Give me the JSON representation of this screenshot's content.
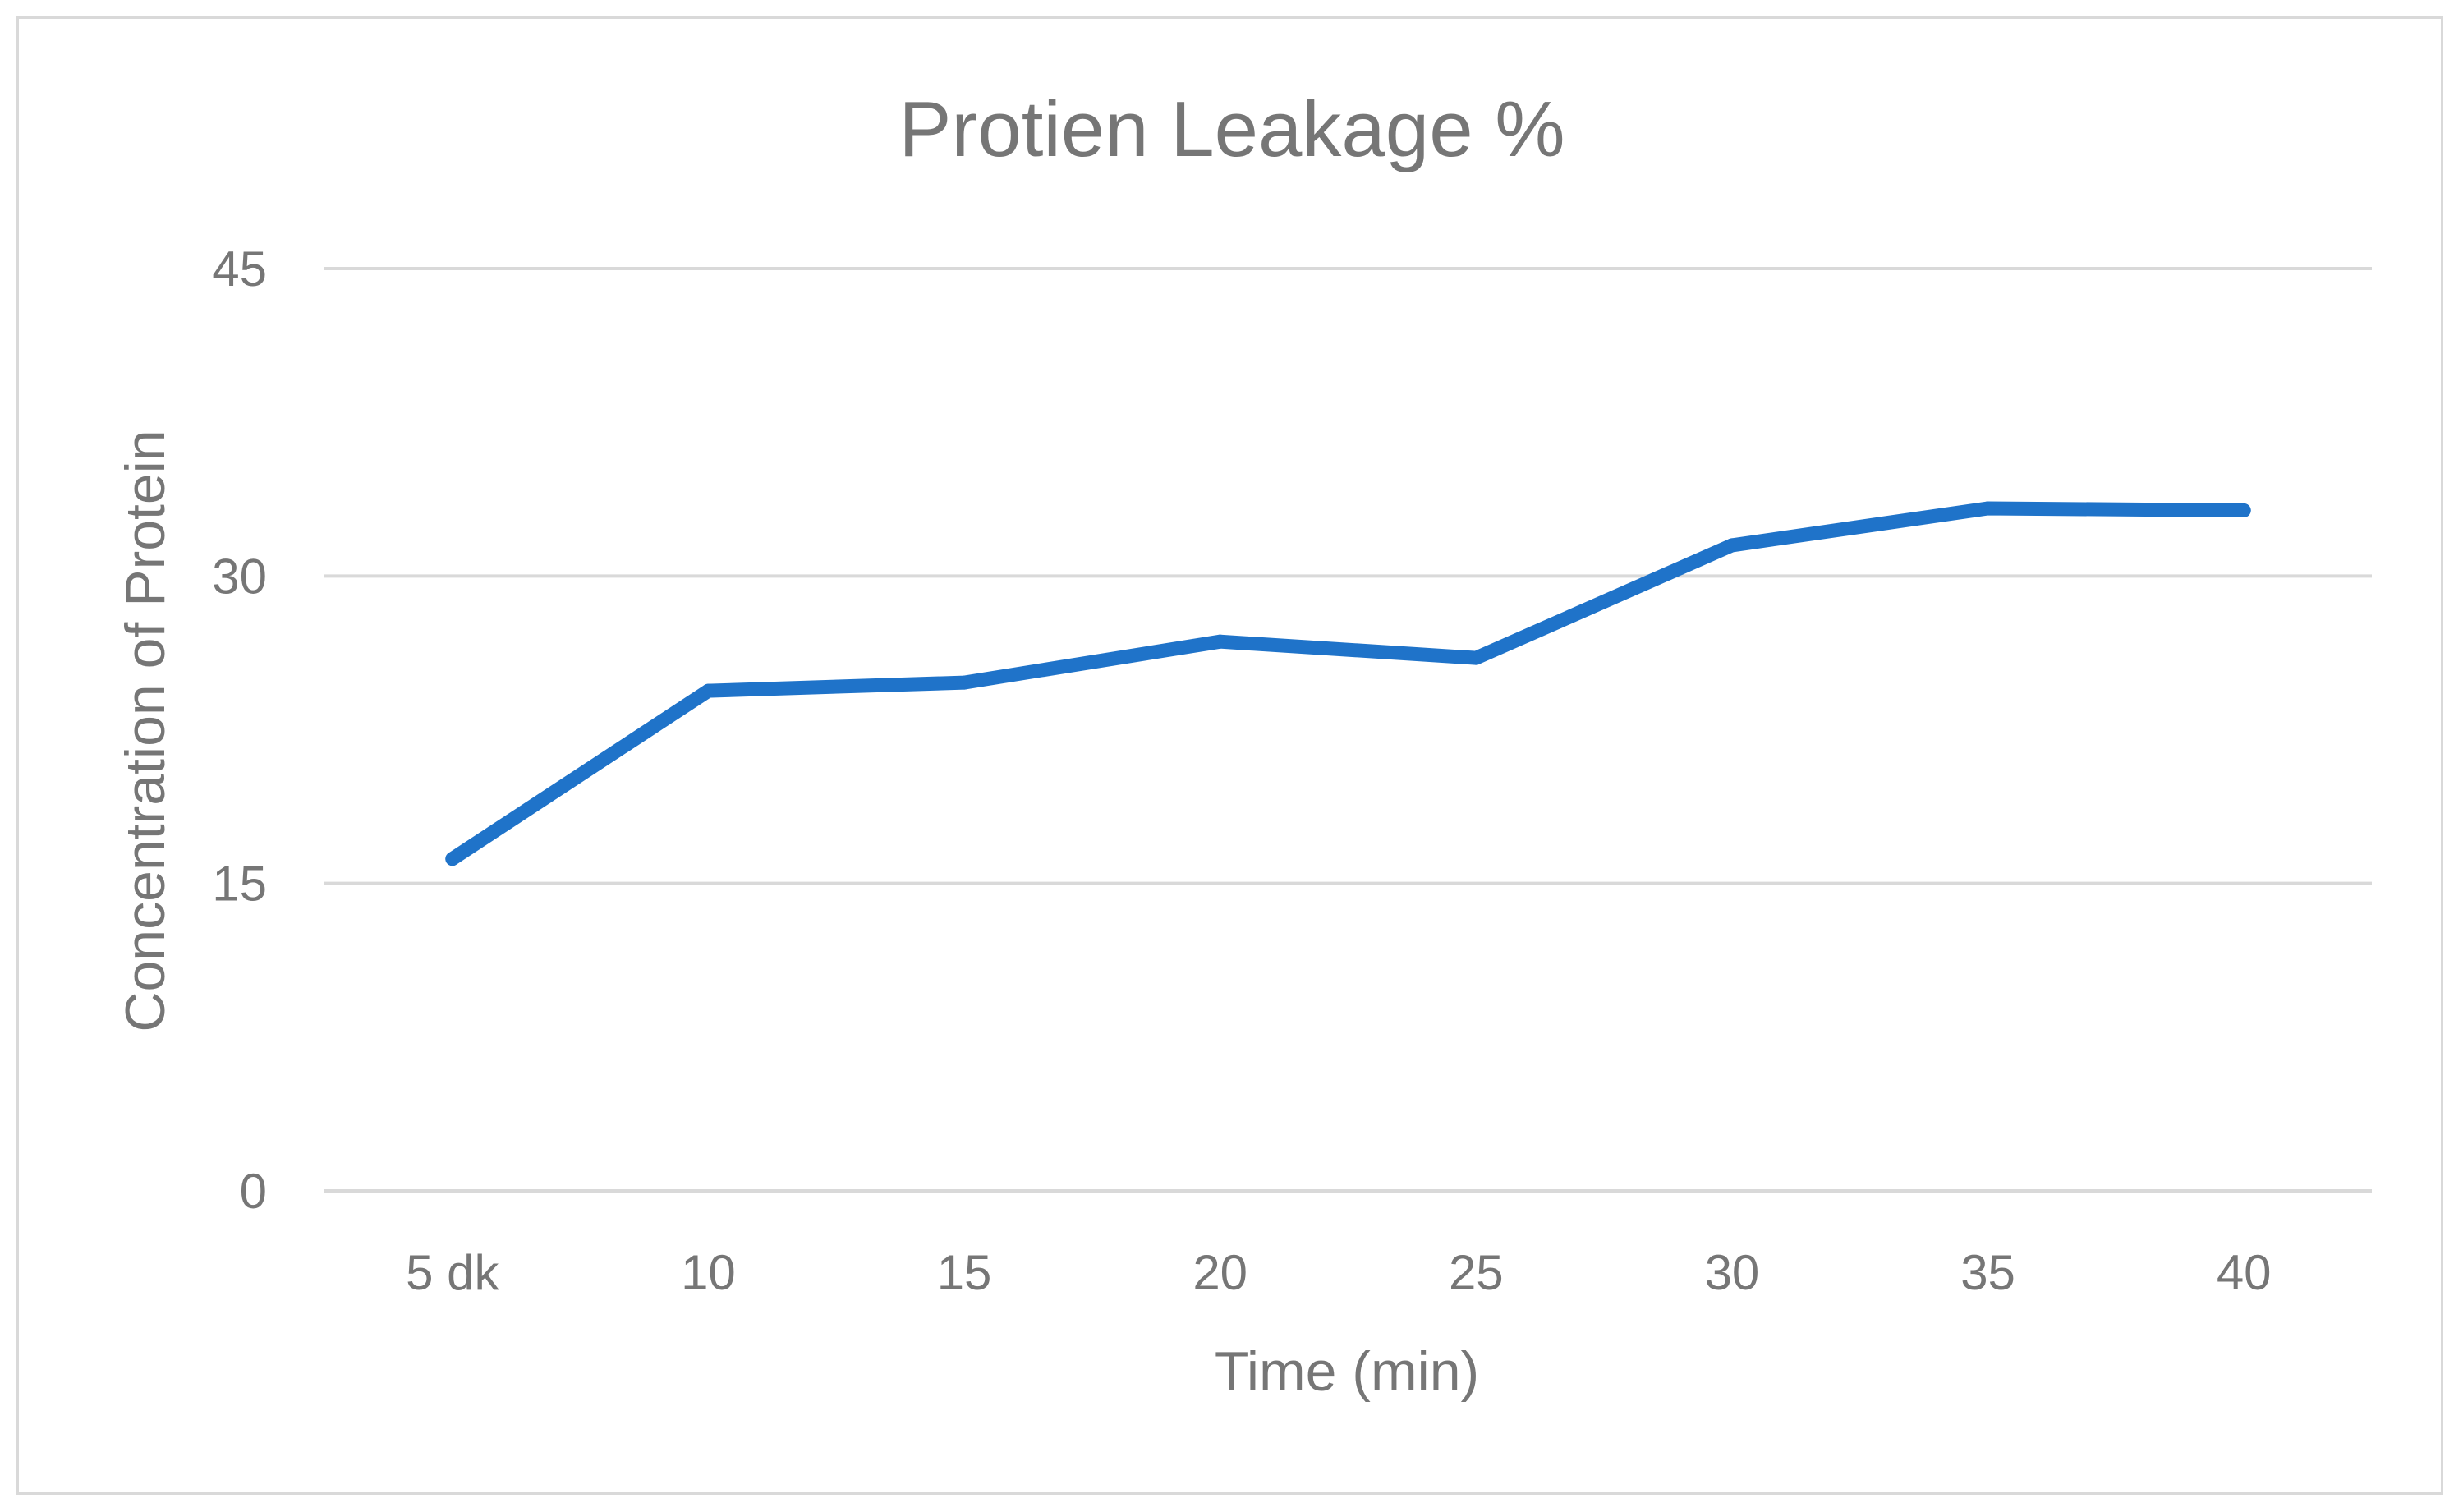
{
  "chart_data": {
    "type": "line",
    "title": "Protien Leakage %",
    "xlabel": "Time (min)",
    "ylabel": "Concentration of Protein",
    "categories": [
      "5 dk",
      "10",
      "15",
      "20",
      "25",
      "30",
      "35",
      "40"
    ],
    "yticks": [
      "0",
      "15",
      "30",
      "45"
    ],
    "ylim": [
      0,
      45
    ],
    "grid": true,
    "legend": "none",
    "series": [
      {
        "values": [
          16.2,
          24.4,
          24.8,
          26.8,
          26.0,
          31.5,
          33.3,
          33.2
        ],
        "color": "#1f73c9"
      }
    ]
  }
}
